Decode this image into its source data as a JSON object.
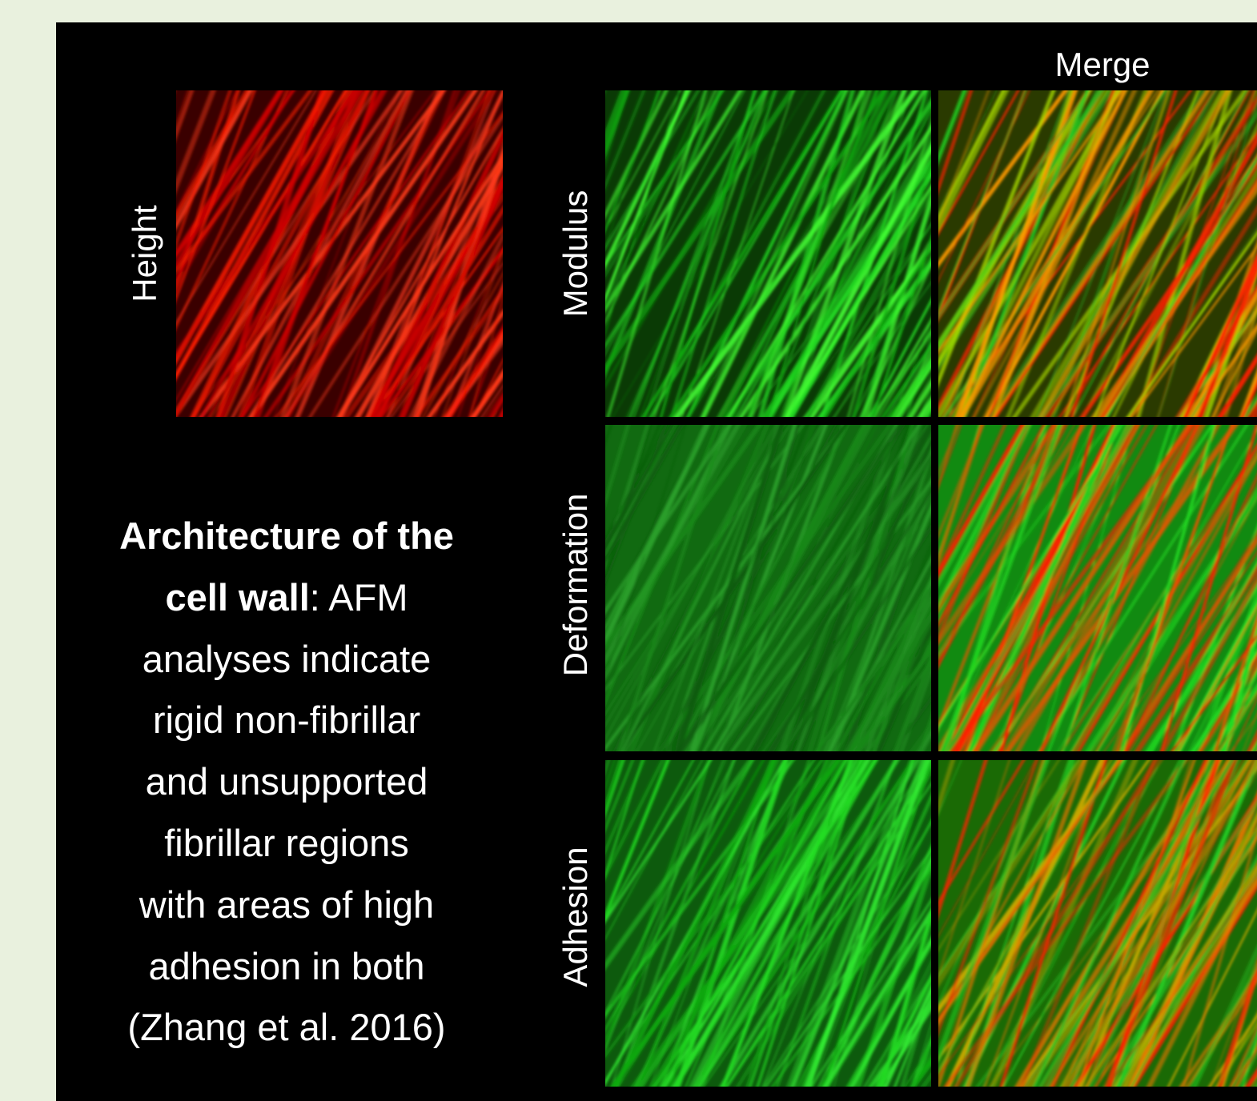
{
  "labels": {
    "height": "Height",
    "merge": "Merge",
    "modulus": "Modulus",
    "deformation": "Deformation",
    "adhesion": "Adhesion"
  },
  "caption": {
    "lines": [
      [
        {
          "text": "Architecture of the",
          "bold": true
        }
      ],
      [
        {
          "text": "cell wall",
          "bold": true
        },
        {
          "text": ": AFM",
          "bold": false
        }
      ],
      [
        {
          "text": "analyses indicate",
          "bold": false
        }
      ],
      [
        {
          "text": "rigid non-fibrillar",
          "bold": false
        }
      ],
      [
        {
          "text": "and unsupported",
          "bold": false
        }
      ],
      [
        {
          "text": "fibrillar regions",
          "bold": false
        }
      ],
      [
        {
          "text": "with areas of high",
          "bold": false
        }
      ],
      [
        {
          "text": "adhesion in both",
          "bold": false
        }
      ],
      [
        {
          "text": "(Zhang et al. 2016)",
          "bold": false
        }
      ]
    ]
  }
}
